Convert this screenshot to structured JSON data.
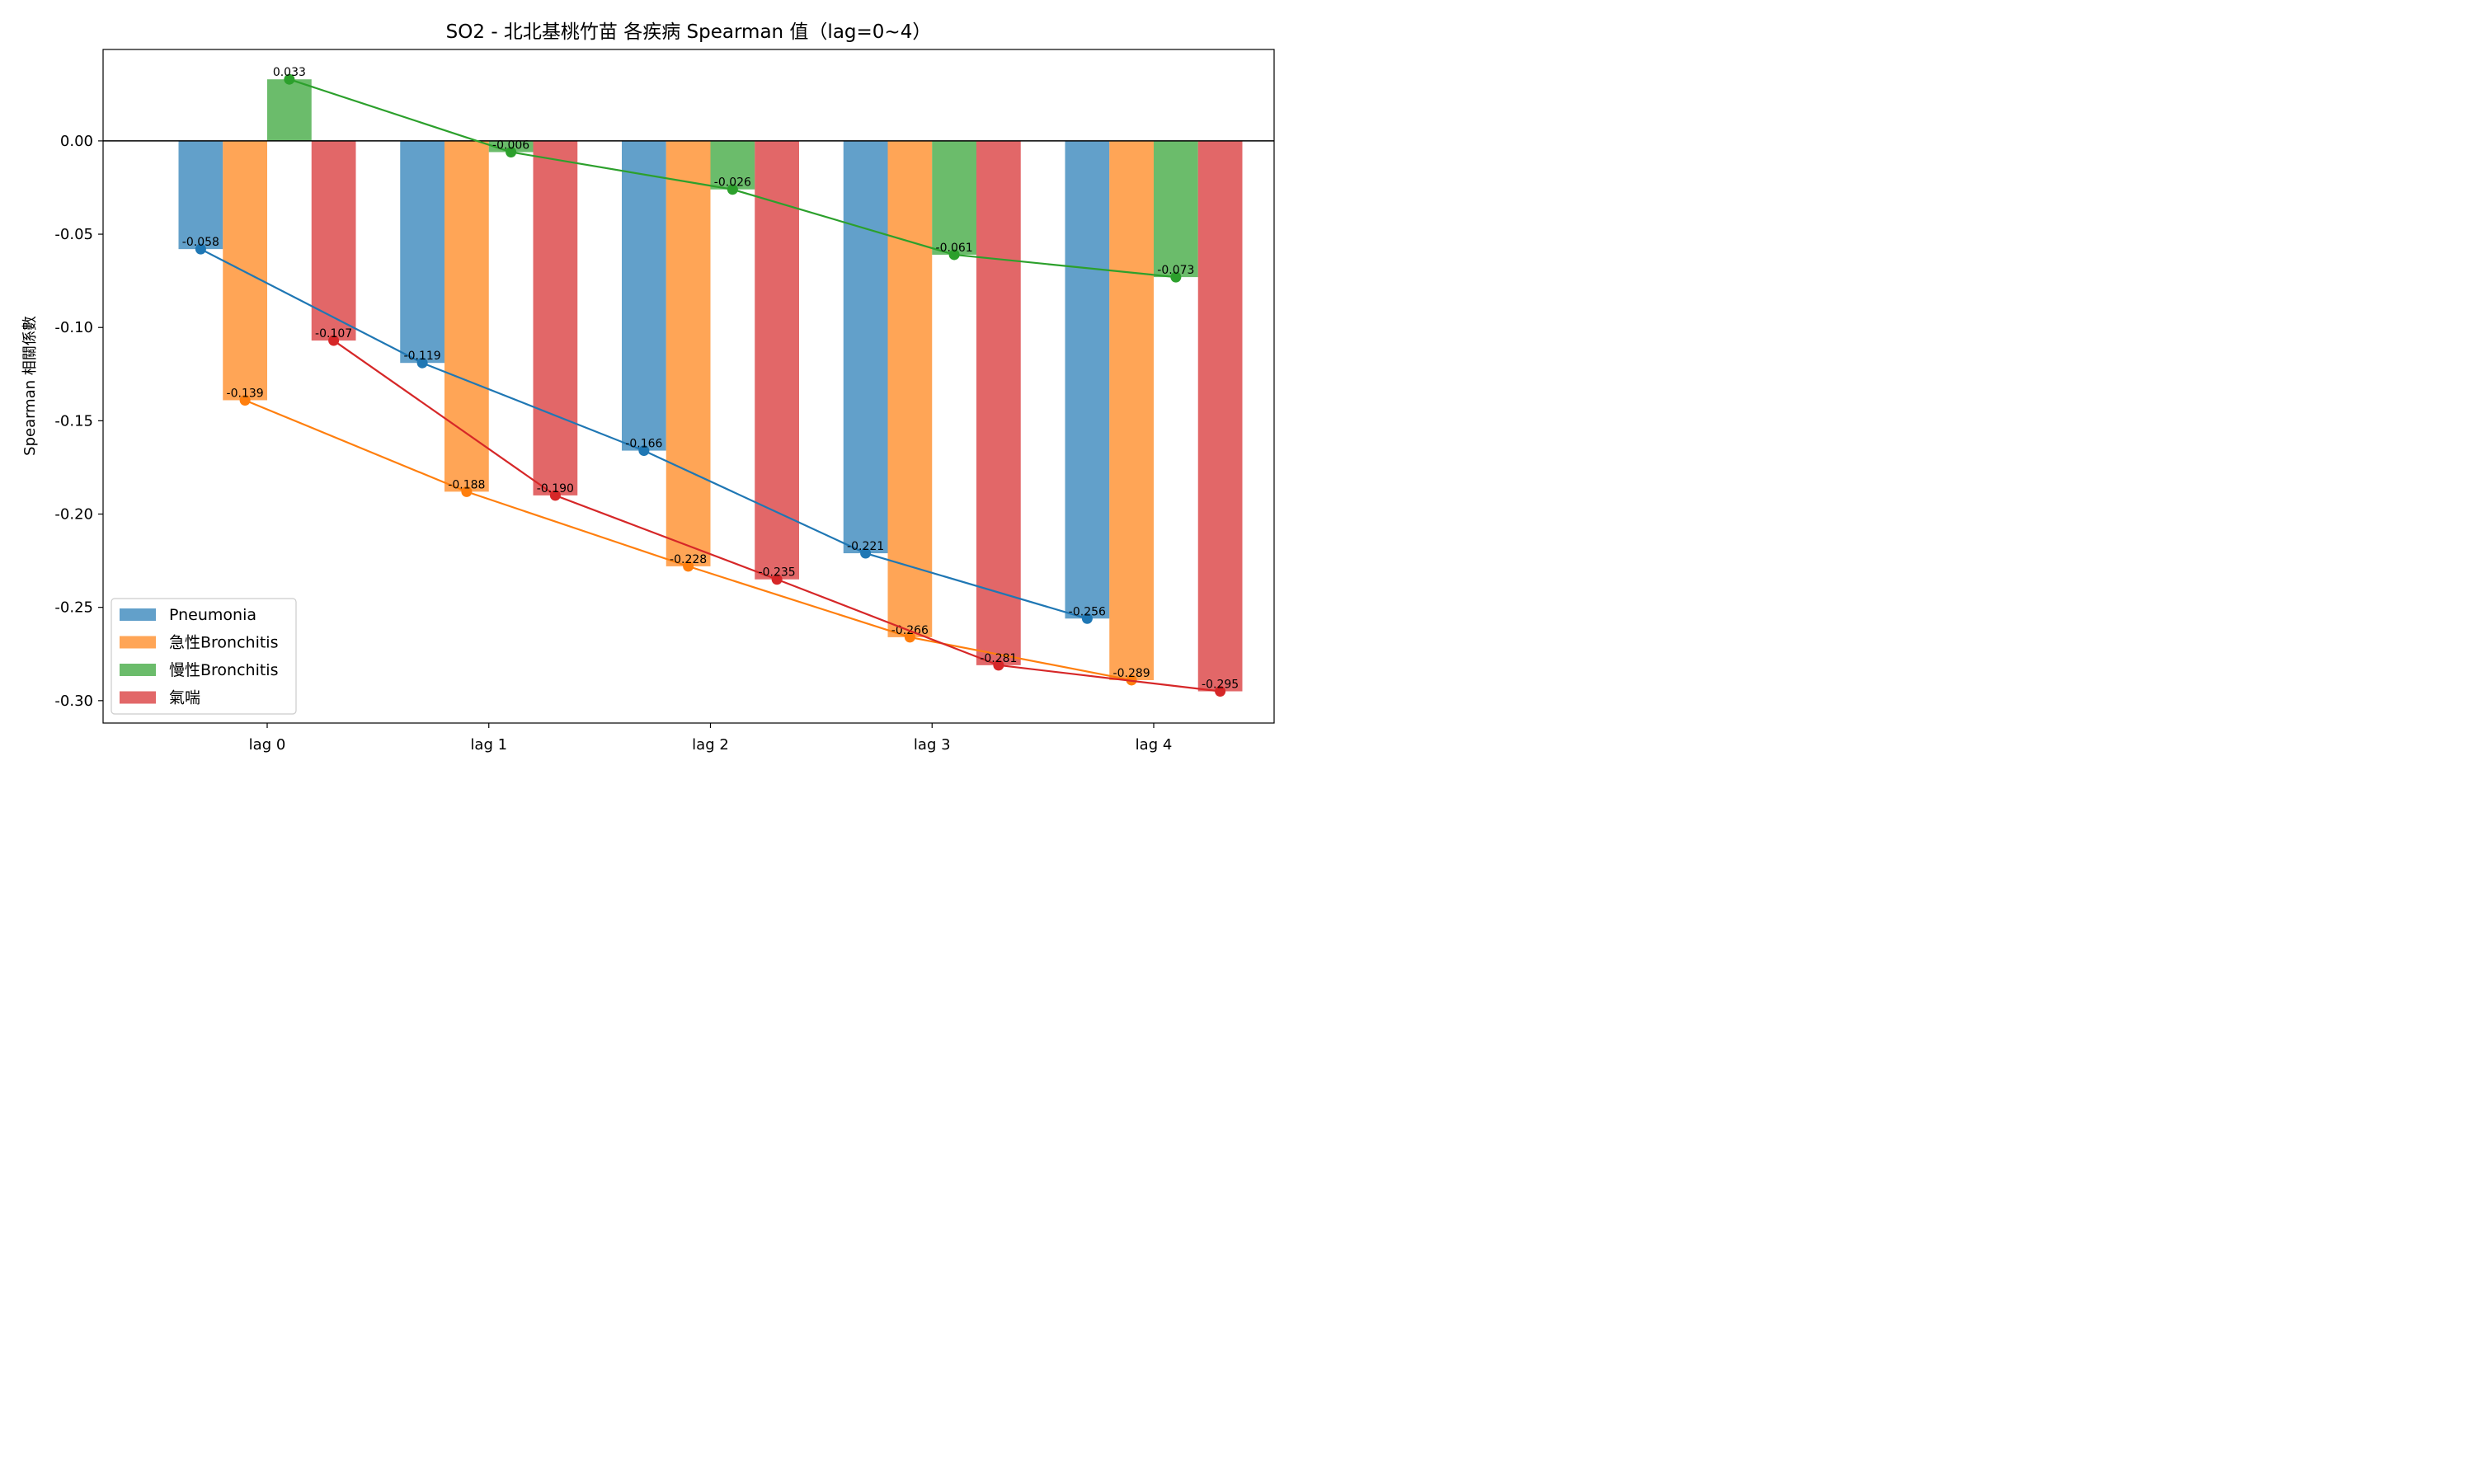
{
  "chart_data": {
    "type": "bar",
    "title": "SO2 - 北北基桃竹苗 各疾病 Spearman 值（lag=0~4）",
    "xlabel": "",
    "ylabel": "Spearman 相關係數",
    "categories": [
      "lag 0",
      "lag 1",
      "lag 2",
      "lag 3",
      "lag 4"
    ],
    "ylim": [
      -0.312,
      0.049
    ],
    "yticks": [
      0.0,
      -0.05,
      -0.1,
      -0.15,
      -0.2,
      -0.25,
      -0.3
    ],
    "ytick_labels": [
      "0.00",
      "-0.05",
      "-0.10",
      "-0.15",
      "-0.20",
      "-0.25",
      "-0.30"
    ],
    "grid": false,
    "legend_position": "lower-left",
    "overlay": "line-with-markers per series through bar tops",
    "series": [
      {
        "name": "Pneumonia",
        "color": "#1f77b4",
        "values": [
          -0.058,
          -0.119,
          -0.166,
          -0.221,
          -0.256
        ],
        "labels": [
          "-0.058",
          "-0.119",
          "-0.166",
          "-0.221",
          "-0.256"
        ]
      },
      {
        "name": "急性Bronchitis",
        "color": "#ff7f0e",
        "values": [
          -0.139,
          -0.188,
          -0.228,
          -0.266,
          -0.289
        ],
        "labels": [
          "-0.139",
          "-0.188",
          "-0.228",
          "-0.266",
          "-0.289"
        ]
      },
      {
        "name": "慢性Bronchitis",
        "color": "#2ca02c",
        "values": [
          0.033,
          -0.006,
          -0.026,
          -0.061,
          -0.073
        ],
        "labels": [
          "0.033",
          "-0.006",
          "-0.026",
          "-0.061",
          "-0.073"
        ]
      },
      {
        "name": "氣喘",
        "color": "#d62728",
        "values": [
          -0.107,
          -0.19,
          -0.235,
          -0.281,
          -0.295
        ],
        "labels": [
          "-0.107",
          "-0.190",
          "-0.235",
          "-0.281",
          "-0.295"
        ]
      }
    ]
  }
}
